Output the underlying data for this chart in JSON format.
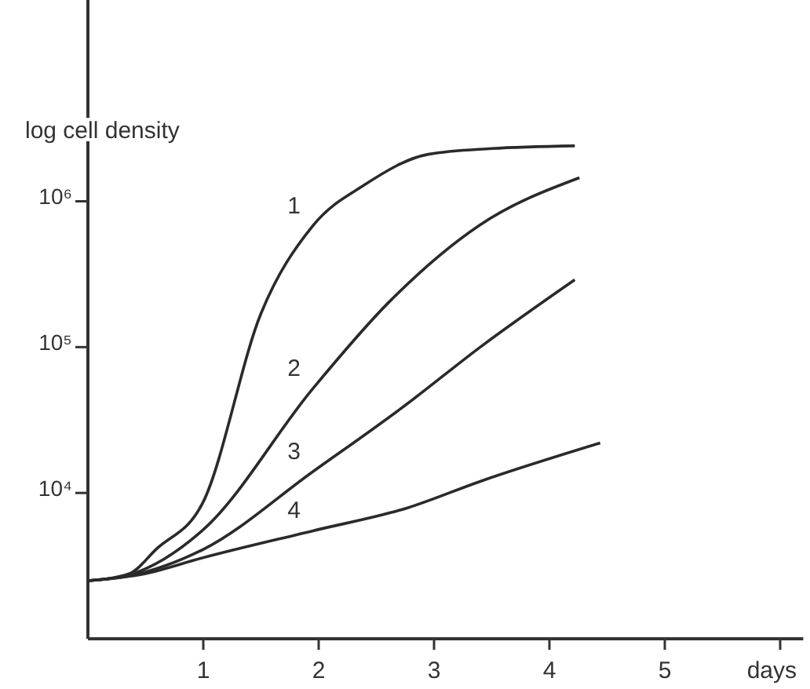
{
  "chart_data": {
    "type": "line",
    "ylabel": "log cell density",
    "xlabel": "days",
    "log": "y",
    "grid": false,
    "marker": "none",
    "line_style": "solid",
    "xlim": [
      0,
      6.2
    ],
    "xticks": [
      1,
      2,
      3,
      4,
      5,
      {
        "value": 6,
        "label": null
      }
    ],
    "ylim": [
      1000,
      24000000
    ],
    "yticks": [
      {
        "value": 10000,
        "label": "10⁴"
      },
      {
        "value": 100000,
        "label": "10⁵"
      },
      {
        "value": 1000000,
        "label": "10⁶"
      }
    ],
    "series": [
      {
        "name": "1",
        "color": "#2a2a2a",
        "x": [
          0,
          0.36,
          0.59,
          1.0,
          1.5,
          1.95,
          2.4,
          2.95,
          3.5,
          4.22
        ],
        "values": [
          2500,
          2800,
          4100,
          8700,
          170000,
          680000,
          1300000,
          2100000,
          2300000,
          2400000
        ]
      },
      {
        "name": "2",
        "color": "#2a2a2a",
        "x": [
          0,
          0.36,
          1.0,
          1.95,
          2.6,
          3.4,
          4.26
        ],
        "values": [
          2500,
          2750,
          5600,
          52000,
          200000,
          690000,
          1450000
        ]
      },
      {
        "name": "3",
        "color": "#2a2a2a",
        "x": [
          0,
          0.36,
          1.0,
          1.95,
          2.77,
          3.4,
          4.22
        ],
        "values": [
          2500,
          2700,
          4100,
          14000,
          41000,
          100000,
          290000
        ]
      },
      {
        "name": "4",
        "color": "#2a2a2a",
        "x": [
          0,
          0.5,
          1.0,
          1.95,
          2.77,
          3.4,
          4.44
        ],
        "values": [
          2500,
          2800,
          3600,
          5500,
          7900,
          12000,
          22000
        ]
      }
    ]
  }
}
